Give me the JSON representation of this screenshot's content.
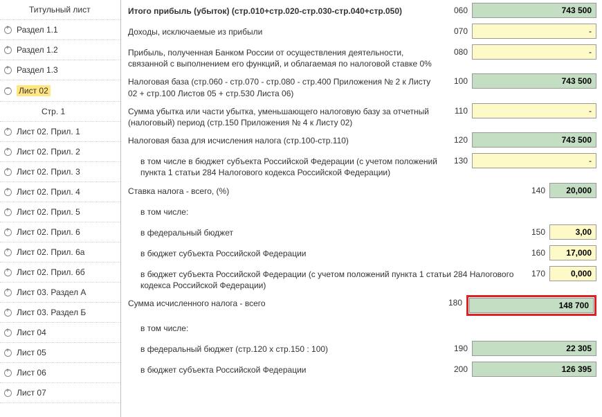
{
  "sidebar": {
    "items": [
      {
        "label": "Титульный лист",
        "icon": "none",
        "indent": 1,
        "sel": false
      },
      {
        "label": "Раздел 1.1",
        "icon": "plus",
        "indent": 0,
        "sel": false
      },
      {
        "label": "Раздел 1.2",
        "icon": "plus",
        "indent": 0,
        "sel": false
      },
      {
        "label": "Раздел 1.3",
        "icon": "plus",
        "indent": 0,
        "sel": false
      },
      {
        "label": "Лист 02",
        "icon": "minus",
        "indent": 0,
        "sel": true
      },
      {
        "label": "Стр. 1",
        "icon": "none",
        "indent": 2,
        "sel": false
      },
      {
        "label": "Лист 02. Прил. 1",
        "icon": "plus",
        "indent": 0,
        "sel": false
      },
      {
        "label": "Лист 02. Прил. 2",
        "icon": "plus",
        "indent": 0,
        "sel": false
      },
      {
        "label": "Лист 02. Прил. 3",
        "icon": "plus",
        "indent": 0,
        "sel": false
      },
      {
        "label": "Лист 02. Прил. 4",
        "icon": "plus",
        "indent": 0,
        "sel": false
      },
      {
        "label": "Лист 02. Прил. 5",
        "icon": "plus",
        "indent": 0,
        "sel": false
      },
      {
        "label": "Лист 02. Прил. 6",
        "icon": "plus",
        "indent": 0,
        "sel": false
      },
      {
        "label": "Лист 02. Прил. 6а",
        "icon": "plus",
        "indent": 0,
        "sel": false
      },
      {
        "label": "Лист 02. Прил. 6б",
        "icon": "plus",
        "indent": 0,
        "sel": false
      },
      {
        "label": "Лист 03. Раздел А",
        "icon": "plus",
        "indent": 0,
        "sel": false
      },
      {
        "label": "Лист 03. Раздел Б",
        "icon": "plus",
        "indent": 0,
        "sel": false
      },
      {
        "label": "Лист 04",
        "icon": "plus",
        "indent": 0,
        "sel": false
      },
      {
        "label": "Лист 05",
        "icon": "plus",
        "indent": 0,
        "sel": false
      },
      {
        "label": "Лист 06",
        "icon": "plus",
        "indent": 0,
        "sel": false
      },
      {
        "label": "Лист 07",
        "icon": "plus",
        "indent": 0,
        "sel": false
      }
    ]
  },
  "rows": [
    {
      "desc": "Итого прибыль (убыток)  (стр.010+стр.020-стр.030-стр.040+стр.050)",
      "bold": true,
      "indent": false,
      "code": "060",
      "value": "743 500",
      "fieldClass": "green",
      "narrow": false,
      "highlighted": false
    },
    {
      "desc": "Доходы, исключаемые из прибыли",
      "bold": false,
      "indent": false,
      "code": "070",
      "value": "-",
      "fieldClass": "yellow",
      "narrow": false,
      "highlighted": false
    },
    {
      "desc": "Прибыль, полученная Банком России от осуществления деятельности, связанной с выполнением его функций, и облагаемая по налоговой ставке 0%",
      "bold": false,
      "indent": false,
      "code": "080",
      "value": "-",
      "fieldClass": "yellow",
      "narrow": false,
      "highlighted": false
    },
    {
      "desc": "Налоговая база\n(стр.060 - стр.070 - стр.080 - стр.400 Приложения № 2 к Листу 02 + стр.100 Листов 05 + стр.530 Листа 06)",
      "bold": false,
      "indent": false,
      "code": "100",
      "value": "743 500",
      "fieldClass": "green",
      "narrow": false,
      "highlighted": false
    },
    {
      "desc": "Сумма убытка или части убытка, уменьшающего налоговую базу за отчетный (налоговый) период (стр.150 Приложения № 4 к Листу 02)",
      "bold": false,
      "indent": false,
      "code": "110",
      "value": "-",
      "fieldClass": "yellow",
      "narrow": false,
      "highlighted": false
    },
    {
      "desc": "Налоговая база для исчисления налога (стр.100-стр.110)",
      "bold": false,
      "indent": false,
      "code": "120",
      "value": "743 500",
      "fieldClass": "green",
      "narrow": false,
      "highlighted": false
    },
    {
      "desc": "в том числе в бюджет субъекта Российской Федерации (с учетом положений пункта 1 статьи 284 Налогового кодекса Российской Федерации)",
      "bold": false,
      "indent": true,
      "code": "130",
      "value": "-",
      "fieldClass": "yellow",
      "narrow": false,
      "highlighted": false
    },
    {
      "desc": "Ставка налога - всего, (%)",
      "bold": false,
      "indent": false,
      "code": "140",
      "value": "20,000",
      "fieldClass": "green",
      "narrow": true,
      "highlighted": false
    },
    {
      "desc": "в том числе:",
      "bold": false,
      "indent": true,
      "code": "",
      "value": "",
      "fieldClass": "none",
      "narrow": false,
      "highlighted": false
    },
    {
      "desc": "в федеральный бюджет",
      "bold": false,
      "indent": true,
      "code": "150",
      "value": "3,00",
      "fieldClass": "yellow bold",
      "narrow": true,
      "highlighted": false
    },
    {
      "desc": "в бюджет субъекта Российской Федерации",
      "bold": false,
      "indent": true,
      "code": "160",
      "value": "17,000",
      "fieldClass": "yellow bold",
      "narrow": true,
      "highlighted": false
    },
    {
      "desc": "в бюджет субъекта Российской Федерации (с учетом положений пункта 1 статьи 284 Налогового кодекса Российской Федерации)",
      "bold": false,
      "indent": true,
      "code": "170",
      "value": "0,000",
      "fieldClass": "yellow bold",
      "narrow": true,
      "highlighted": false
    },
    {
      "desc": "Сумма исчисленного налога - всего",
      "bold": false,
      "indent": false,
      "code": "180",
      "value": "148 700",
      "fieldClass": "green",
      "narrow": false,
      "highlighted": true
    },
    {
      "desc": "в том числе:",
      "bold": false,
      "indent": true,
      "code": "",
      "value": "",
      "fieldClass": "none",
      "narrow": false,
      "highlighted": false
    },
    {
      "desc": "в федеральный бюджет (стр.120 х стр.150 : 100)",
      "bold": false,
      "indent": true,
      "code": "190",
      "value": "22 305",
      "fieldClass": "green",
      "narrow": false,
      "highlighted": false
    },
    {
      "desc": "в бюджет субъекта Российской Федерации",
      "bold": false,
      "indent": true,
      "code": "200",
      "value": "126 395",
      "fieldClass": "green",
      "narrow": false,
      "highlighted": false
    }
  ],
  "colors": {
    "green": "#c3dec3",
    "yellow": "#fdfac8",
    "highlight_border": "#d22",
    "selected_bg": "#ffe680"
  }
}
